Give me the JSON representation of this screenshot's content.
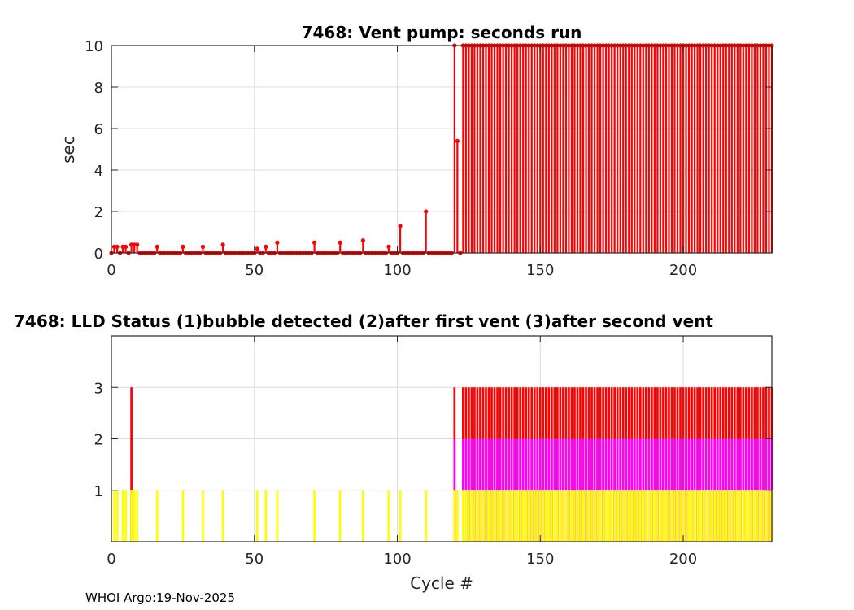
{
  "footer": "WHOI Argo:19-Nov-2025",
  "chart_data": [
    {
      "type": "stem",
      "title": "7468: Vent pump: seconds run",
      "xlabel": "",
      "ylabel": "sec",
      "xlim": [
        0,
        231
      ],
      "ylim": [
        0,
        10
      ],
      "xticks": [
        0,
        50,
        100,
        150,
        200
      ],
      "yticks": [
        0,
        2,
        4,
        6,
        8,
        10
      ],
      "grid": true,
      "color": "#ff0000",
      "x_start": 0,
      "values": [
        0,
        0.3,
        0.3,
        0,
        0.3,
        0.3,
        0,
        0.4,
        0.4,
        0.4,
        0,
        0,
        0,
        0,
        0,
        0,
        0.3,
        0,
        0,
        0,
        0,
        0,
        0,
        0,
        0,
        0.3,
        0,
        0,
        0,
        0,
        0,
        0,
        0.3,
        0,
        0,
        0,
        0,
        0,
        0,
        0.4,
        0,
        0,
        0,
        0,
        0,
        0,
        0,
        0,
        0,
        0,
        0,
        0.2,
        0,
        0,
        0.3,
        0,
        0,
        0,
        0.5,
        0,
        0,
        0,
        0,
        0,
        0,
        0,
        0,
        0,
        0,
        0,
        0,
        0.5,
        0,
        0,
        0,
        0,
        0,
        0,
        0,
        0,
        0.5,
        0,
        0,
        0,
        0,
        0,
        0,
        0,
        0.6,
        0,
        0,
        0,
        0,
        0,
        0,
        0,
        0,
        0.3,
        0,
        0,
        0,
        1.3,
        0,
        0,
        0,
        0,
        0,
        0,
        0,
        0,
        2,
        0,
        0,
        0,
        0,
        0,
        0,
        0,
        0,
        0,
        10,
        5.4,
        0,
        10,
        10,
        10,
        10,
        10,
        10,
        10,
        10,
        10,
        10,
        10,
        10,
        10,
        10,
        10,
        10,
        10,
        10,
        10,
        10,
        10,
        10,
        10,
        10,
        10,
        10,
        10,
        10,
        10,
        10,
        10,
        10,
        10,
        10,
        10,
        10,
        10,
        10,
        10,
        10,
        10,
        10,
        10,
        10,
        10,
        10,
        10,
        10,
        10,
        10,
        10,
        10,
        10,
        10,
        10,
        10,
        10,
        10,
        10,
        10,
        10,
        10,
        10,
        10,
        10,
        10,
        10,
        10,
        10,
        10,
        10,
        10,
        10,
        10,
        10,
        10,
        10,
        10,
        10,
        10,
        10,
        10,
        10,
        10,
        10,
        10,
        10,
        10,
        10,
        10,
        10,
        10,
        10,
        10,
        10,
        10,
        10,
        10,
        10,
        10,
        10,
        10,
        10,
        10,
        10,
        10,
        10,
        10,
        10
      ]
    },
    {
      "type": "bar",
      "title": "7468: LLD Status   (1)bubble detected   (2)after first vent  (3)after second vent",
      "xlabel": "Cycle #",
      "ylabel": "",
      "xlim": [
        0,
        231
      ],
      "ylim": [
        0,
        4
      ],
      "xticks": [
        0,
        50,
        100,
        150,
        200
      ],
      "yticks": [
        1,
        2,
        3
      ],
      "grid": true,
      "series": [
        {
          "name": "after second vent",
          "level": 3,
          "color": "#ff0000",
          "cycle_ranges": [
            [
              7,
              7
            ],
            [
              120,
              120
            ],
            [
              123,
              231
            ]
          ]
        },
        {
          "name": "after first vent",
          "level": 2,
          "color": "#ff00ff",
          "cycle_ranges": [
            [
              120,
              120
            ],
            [
              123,
              231
            ]
          ]
        },
        {
          "name": "bubble detected",
          "level": 1,
          "color": "#ffff00",
          "cycle_ranges": [
            [
              1,
              2
            ],
            [
              4,
              5
            ],
            [
              7,
              9
            ],
            [
              16,
              16
            ],
            [
              25,
              25
            ],
            [
              32,
              32
            ],
            [
              39,
              39
            ],
            [
              51,
              51
            ],
            [
              54,
              54
            ],
            [
              58,
              58
            ],
            [
              71,
              71
            ],
            [
              80,
              80
            ],
            [
              88,
              88
            ],
            [
              97,
              97
            ],
            [
              101,
              101
            ],
            [
              110,
              110
            ],
            [
              120,
              121
            ],
            [
              123,
              231
            ]
          ]
        }
      ]
    }
  ]
}
